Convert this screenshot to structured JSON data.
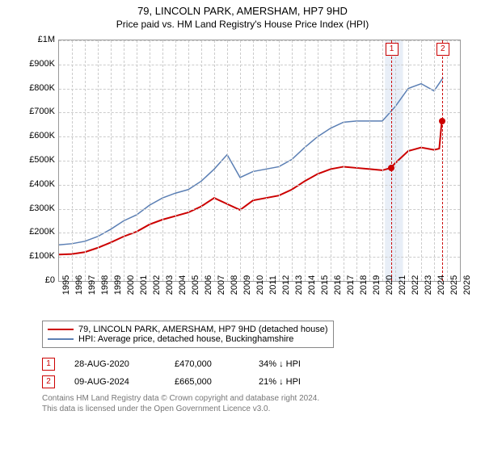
{
  "title": "79, LINCOLN PARK, AMERSHAM, HP7 9HD",
  "subtitle": "Price paid vs. HM Land Registry's House Price Index (HPI)",
  "chart": {
    "type": "line",
    "background_color": "#ffffff",
    "grid_color": "#cccccc",
    "axis_color": "#999999",
    "y_axis": {
      "min": 0,
      "max": 1000000,
      "tick_step": 100000,
      "labels": [
        "£0",
        "£100K",
        "£200K",
        "£300K",
        "£400K",
        "£500K",
        "£600K",
        "£700K",
        "£800K",
        "£900K",
        "£1M"
      ]
    },
    "x_axis": {
      "min": 1995,
      "max": 2026,
      "tick_step": 1,
      "labels": [
        "1995",
        "1996",
        "1997",
        "1998",
        "1999",
        "2000",
        "2001",
        "2002",
        "2003",
        "2004",
        "2005",
        "2006",
        "2007",
        "2008",
        "2009",
        "2010",
        "2011",
        "2012",
        "2013",
        "2014",
        "2015",
        "2016",
        "2017",
        "2018",
        "2019",
        "2020",
        "2021",
        "2022",
        "2023",
        "2024",
        "2025",
        "2026"
      ]
    },
    "highlight_band": {
      "x_start": 2020.2,
      "x_end": 2021.6,
      "fill": "#e8eef7"
    },
    "series": [
      {
        "name": "price_paid",
        "label": "79, LINCOLN PARK, AMERSHAM, HP7 9HD (detached house)",
        "color": "#cc0000",
        "line_width": 2,
        "points": [
          [
            1995,
            110000
          ],
          [
            1996,
            112000
          ],
          [
            1997,
            120000
          ],
          [
            1998,
            138000
          ],
          [
            1999,
            160000
          ],
          [
            2000,
            185000
          ],
          [
            2001,
            205000
          ],
          [
            2002,
            235000
          ],
          [
            2003,
            255000
          ],
          [
            2004,
            270000
          ],
          [
            2005,
            285000
          ],
          [
            2006,
            310000
          ],
          [
            2007,
            345000
          ],
          [
            2008,
            320000
          ],
          [
            2009,
            295000
          ],
          [
            2010,
            335000
          ],
          [
            2011,
            345000
          ],
          [
            2012,
            355000
          ],
          [
            2013,
            380000
          ],
          [
            2014,
            415000
          ],
          [
            2015,
            445000
          ],
          [
            2016,
            465000
          ],
          [
            2017,
            475000
          ],
          [
            2018,
            470000
          ],
          [
            2019,
            465000
          ],
          [
            2020,
            460000
          ],
          [
            2020.66,
            470000
          ],
          [
            2021,
            490000
          ],
          [
            2022,
            540000
          ],
          [
            2023,
            555000
          ],
          [
            2024,
            545000
          ],
          [
            2024.4,
            550000
          ],
          [
            2024.6,
            665000
          ]
        ]
      },
      {
        "name": "hpi",
        "label": "HPI: Average price, detached house, Buckinghamshire",
        "color": "#5b7fb4",
        "line_width": 1.5,
        "points": [
          [
            1995,
            150000
          ],
          [
            1996,
            155000
          ],
          [
            1997,
            165000
          ],
          [
            1998,
            185000
          ],
          [
            1999,
            215000
          ],
          [
            2000,
            250000
          ],
          [
            2001,
            275000
          ],
          [
            2002,
            315000
          ],
          [
            2003,
            345000
          ],
          [
            2004,
            365000
          ],
          [
            2005,
            380000
          ],
          [
            2006,
            415000
          ],
          [
            2007,
            465000
          ],
          [
            2008,
            525000
          ],
          [
            2009,
            430000
          ],
          [
            2010,
            455000
          ],
          [
            2011,
            465000
          ],
          [
            2012,
            475000
          ],
          [
            2013,
            505000
          ],
          [
            2014,
            555000
          ],
          [
            2015,
            600000
          ],
          [
            2016,
            635000
          ],
          [
            2017,
            660000
          ],
          [
            2018,
            665000
          ],
          [
            2019,
            665000
          ],
          [
            2020,
            665000
          ],
          [
            2021,
            725000
          ],
          [
            2022,
            800000
          ],
          [
            2023,
            820000
          ],
          [
            2024,
            790000
          ],
          [
            2024.7,
            845000
          ]
        ]
      }
    ],
    "sale_markers": [
      {
        "n": "1",
        "x": 2020.66,
        "y": 470000
      },
      {
        "n": "2",
        "x": 2024.61,
        "y": 665000
      }
    ]
  },
  "legend": {
    "items": [
      {
        "color": "#cc0000",
        "label": "79, LINCOLN PARK, AMERSHAM, HP7 9HD (detached house)"
      },
      {
        "color": "#5b7fb4",
        "label": "HPI: Average price, detached house, Buckinghamshire"
      }
    ]
  },
  "sales": [
    {
      "n": "1",
      "date": "28-AUG-2020",
      "price": "£470,000",
      "delta": "34% ↓ HPI"
    },
    {
      "n": "2",
      "date": "09-AUG-2024",
      "price": "£665,000",
      "delta": "21% ↓ HPI"
    }
  ],
  "footnote_line1": "Contains HM Land Registry data © Crown copyright and database right 2024.",
  "footnote_line2": "This data is licensed under the Open Government Licence v3.0."
}
